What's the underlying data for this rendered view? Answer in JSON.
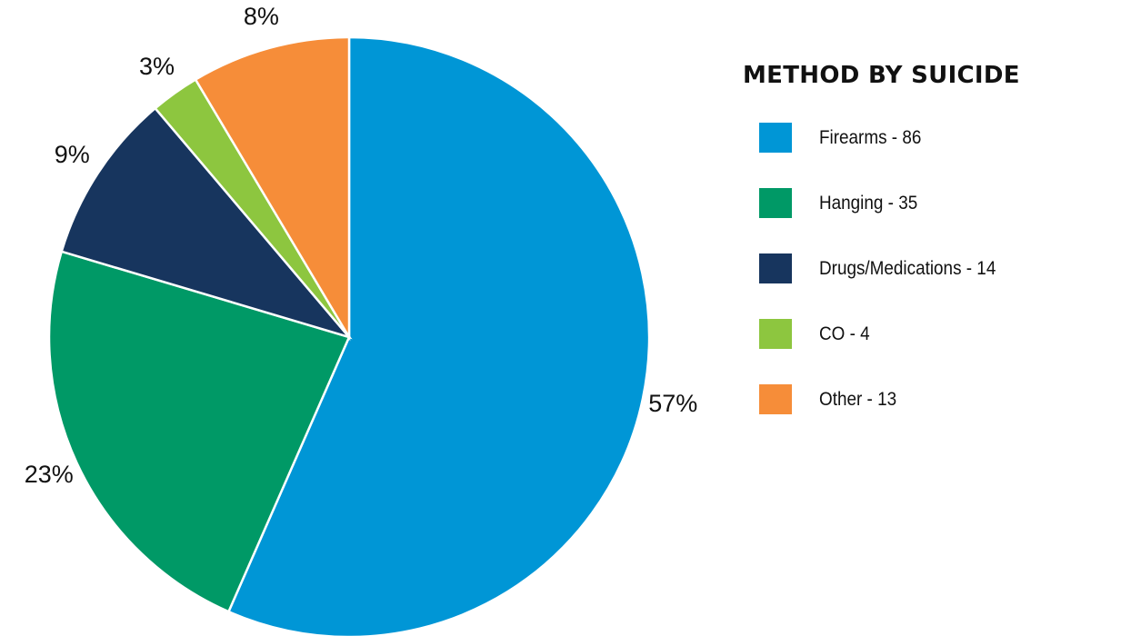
{
  "chart_data": {
    "type": "pie",
    "title": "METHOD BY SUICIDE",
    "slices": [
      {
        "label": "Firearms",
        "value": 86,
        "percent_label": "57%",
        "color": "#0096d6"
      },
      {
        "label": "Hanging",
        "value": 35,
        "percent_label": "23%",
        "color": "#009966"
      },
      {
        "label": "Drugs/Medications",
        "value": 14,
        "percent_label": "9%",
        "color": "#17355e"
      },
      {
        "label": "CO",
        "value": 4,
        "percent_label": "3%",
        "color": "#8dc63f"
      },
      {
        "label": "Other",
        "value": 13,
        "percent_label": "8%",
        "color": "#f68d39"
      }
    ],
    "legend_placement": "right",
    "legend_entries": [
      "Firearms - 86",
      "Hanging - 35",
      "Drugs/Medications - 14",
      "CO - 4",
      "Other - 13"
    ]
  }
}
